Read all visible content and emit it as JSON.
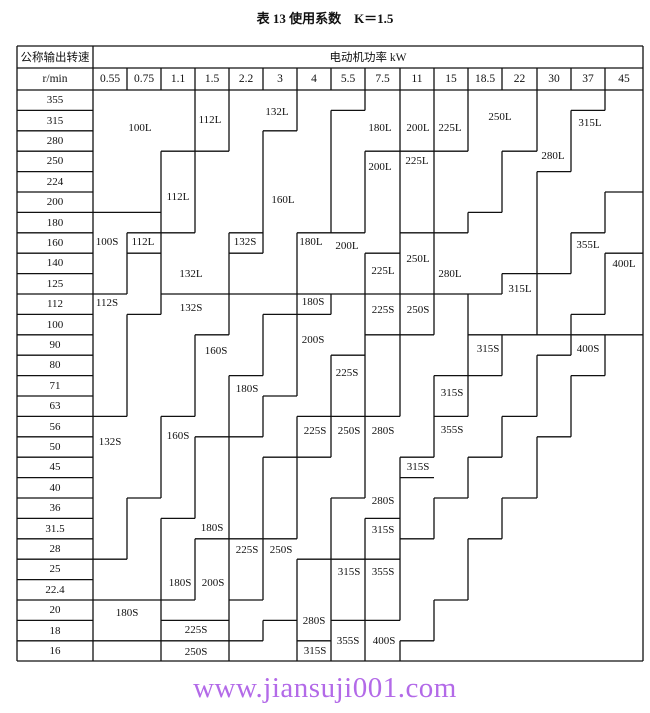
{
  "title": "表 13 使用系数　K＝1.5",
  "header": {
    "speed_label": "公称输出转速",
    "speed_unit": "r/min",
    "power_label": "电动机功率 kW"
  },
  "power_columns": [
    "0.55",
    "0.75",
    "1.1",
    "1.5",
    "2.2",
    "3",
    "4",
    "5.5",
    "7.5",
    "11",
    "15",
    "18.5",
    "22",
    "30",
    "37",
    "45"
  ],
  "speeds": [
    "355",
    "315",
    "280",
    "250",
    "224",
    "200",
    "180",
    "160",
    "140",
    "125",
    "112",
    "100",
    "90",
    "80",
    "71",
    "63",
    "56",
    "50",
    "45",
    "40",
    "36",
    "31.5",
    "28",
    "25",
    "22.4",
    "20",
    "18",
    "16"
  ],
  "cells": [
    "100L",
    "112L",
    "132L",
    "180L",
    "200L",
    "225L",
    "250L",
    "315L",
    "112L",
    "160L",
    "200L",
    "225L",
    "280L",
    "100S",
    "112L",
    "132S",
    "180L",
    "200L",
    "355L",
    "225L",
    "250L",
    "280L",
    "400L",
    "132L",
    "315L",
    "112S",
    "132S",
    "180S",
    "225S",
    "250S",
    "200S",
    "160S",
    "315S",
    "400S",
    "225S",
    "180S",
    "315S",
    "132S",
    "160S",
    "225S",
    "250S",
    "280S",
    "355S",
    "315S",
    "280S",
    "180S",
    "315S",
    "225S",
    "250S",
    "315S",
    "355S",
    "180S",
    "200S",
    "180S",
    "280S",
    "225S",
    "355S",
    "400S",
    "250S",
    "315S"
  ],
  "watermark": "www.jiansuji001.com"
}
